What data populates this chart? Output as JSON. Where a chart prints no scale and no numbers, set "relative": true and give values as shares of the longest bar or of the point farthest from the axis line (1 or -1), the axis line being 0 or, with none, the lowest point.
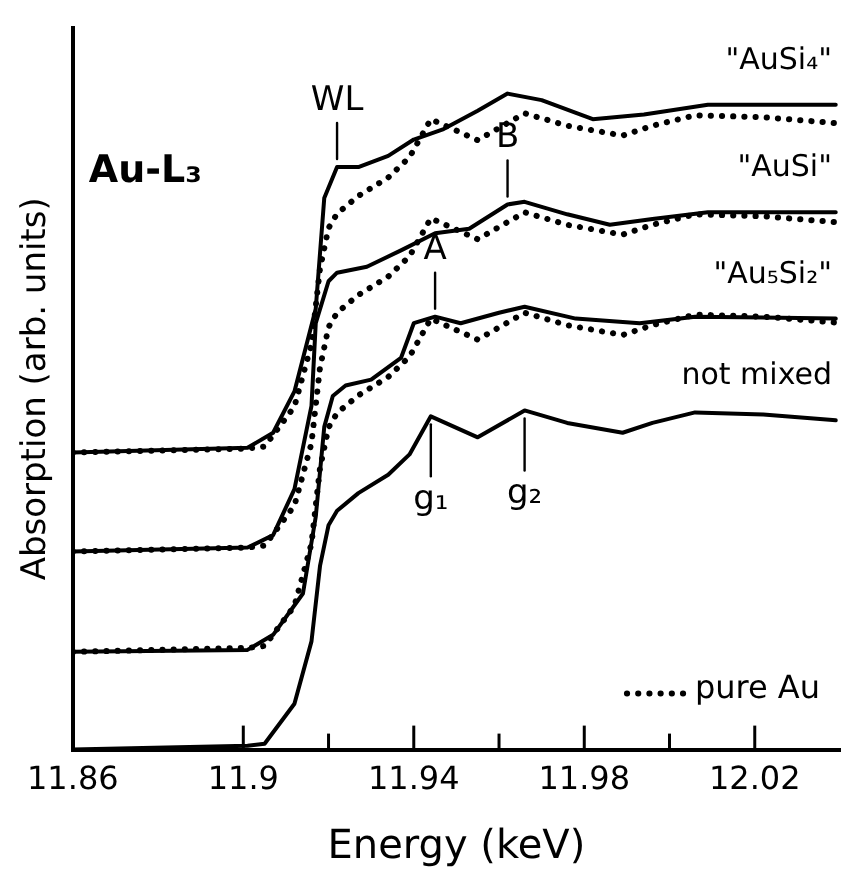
{
  "chart_data": {
    "type": "line",
    "relative": true,
    "xlabel": "Energy (keV)",
    "ylabel": "Absorption (arb. units)",
    "xlim": [
      11.86,
      12.04
    ],
    "xticks": [
      11.86,
      11.9,
      {
        "value": 11.92,
        "label": null
      },
      11.94,
      {
        "value": 11.96,
        "label": null
      },
      11.98,
      {
        "value": 12.0,
        "label": null
      },
      12.02
    ],
    "grid": false,
    "legend": "bottom right",
    "marker": "none",
    "line_style": "solid",
    "annotations": [
      "Au-L₃",
      {
        "text": "WL",
        "x": 11.922,
        "y": 0.888
      },
      {
        "text": "B",
        "x": 11.962,
        "y": 0.831
      },
      {
        "text": "A",
        "x": 11.945,
        "y": 0.66
      },
      {
        "text": "g₁",
        "x": 11.944,
        "y": 0.508
      },
      {
        "text": "g₂",
        "x": 11.966,
        "y": 0.517
      }
    ],
    "series": [
      {
        "name": "\"AuSi₄\"",
        "color": "#000000",
        "line_style": "solid",
        "x": [
          11.86,
          11.901,
          11.907,
          11.912,
          11.917,
          11.919,
          11.922,
          11.927,
          11.934,
          11.94,
          11.947,
          11.955,
          11.962,
          11.97,
          11.982,
          11.994,
          12.009,
          12.039
        ],
        "values": [
          0.453,
          0.46,
          0.483,
          0.546,
          0.672,
          0.841,
          0.888,
          0.888,
          0.905,
          0.93,
          0.946,
          0.974,
          1,
          0.99,
          0.961,
          0.968,
          0.983,
          0.983
        ]
      },
      {
        "name": "\"AuSi\"",
        "color": "#000000",
        "line_style": "solid",
        "x": [
          11.86,
          11.901,
          11.907,
          11.912,
          11.916,
          11.917,
          11.92,
          11.922,
          11.929,
          11.937,
          11.945,
          11.953,
          11.962,
          11.966,
          11.976,
          11.986,
          11.996,
          12.009,
          12.039
        ],
        "values": [
          0.302,
          0.308,
          0.327,
          0.397,
          0.524,
          0.65,
          0.714,
          0.727,
          0.736,
          0.761,
          0.787,
          0.794,
          0.831,
          0.835,
          0.816,
          0.8,
          0.809,
          0.819,
          0.819
        ]
      },
      {
        "name": "\"Au₅Si₂\"",
        "color": "#000000",
        "line_style": "solid",
        "x": [
          11.86,
          11.901,
          11.907,
          11.914,
          11.917,
          11.919,
          11.921,
          11.924,
          11.93,
          11.937,
          11.94,
          11.945,
          11.951,
          11.96,
          11.966,
          11.978,
          11.993,
          12.006,
          12.039
        ],
        "values": [
          0.149,
          0.152,
          0.175,
          0.238,
          0.355,
          0.492,
          0.539,
          0.555,
          0.564,
          0.597,
          0.65,
          0.66,
          0.65,
          0.666,
          0.675,
          0.657,
          0.65,
          0.66,
          0.657
        ]
      },
      {
        "name": "not mixed",
        "color": "#000000",
        "line_style": "solid",
        "x": [
          11.86,
          11.901,
          11.905,
          11.912,
          11.916,
          11.918,
          11.92,
          11.922,
          11.927,
          11.934,
          11.939,
          11.944,
          11.955,
          11.966,
          11.976,
          11.989,
          11.996,
          12.006,
          12.022,
          12.039
        ],
        "values": [
          0,
          0.006,
          0.009,
          0.07,
          0.165,
          0.28,
          0.342,
          0.364,
          0.391,
          0.419,
          0.45,
          0.508,
          0.476,
          0.517,
          0.498,
          0.483,
          0.498,
          0.514,
          0.511,
          0.502
        ]
      },
      {
        "name": "pure Au",
        "color": "#000000",
        "line_style": "dotted",
        "x": [
          11.86,
          11.901,
          11.905,
          11.912,
          11.916,
          11.918,
          11.92,
          11.922,
          11.927,
          11.934,
          11.939,
          11.944,
          11.955,
          11.966,
          11.976,
          11.989,
          11.996,
          12.006,
          12.022,
          12.039
        ],
        "values": [
          0.453,
          0.459,
          0.462,
          0.523,
          0.618,
          0.733,
          0.795,
          0.817,
          0.844,
          0.872,
          0.903,
          0.961,
          0.929,
          0.97,
          0.951,
          0.936,
          0.951,
          0.967,
          0.964,
          0.955
        ]
      },
      {
        "color": "#000000",
        "line_style": "dotted",
        "x": [
          11.86,
          11.901,
          11.905,
          11.912,
          11.916,
          11.918,
          11.92,
          11.922,
          11.927,
          11.934,
          11.939,
          11.944,
          11.955,
          11.966,
          11.976,
          11.989,
          11.996,
          12.006,
          12.022,
          12.039
        ],
        "values": [
          0.302,
          0.308,
          0.311,
          0.372,
          0.467,
          0.582,
          0.644,
          0.666,
          0.693,
          0.721,
          0.752,
          0.81,
          0.778,
          0.819,
          0.8,
          0.785,
          0.8,
          0.816,
          0.813,
          0.804
        ]
      },
      {
        "color": "#000000",
        "line_style": "dotted",
        "x": [
          11.86,
          11.901,
          11.905,
          11.912,
          11.916,
          11.918,
          11.92,
          11.922,
          11.927,
          11.934,
          11.939,
          11.944,
          11.955,
          11.966,
          11.976,
          11.989,
          11.996,
          12.006,
          12.022,
          12.039
        ],
        "values": [
          0.149,
          0.155,
          0.158,
          0.219,
          0.314,
          0.429,
          0.491,
          0.513,
          0.54,
          0.568,
          0.599,
          0.657,
          0.625,
          0.666,
          0.647,
          0.632,
          0.647,
          0.663,
          0.66,
          0.651
        ]
      }
    ]
  }
}
